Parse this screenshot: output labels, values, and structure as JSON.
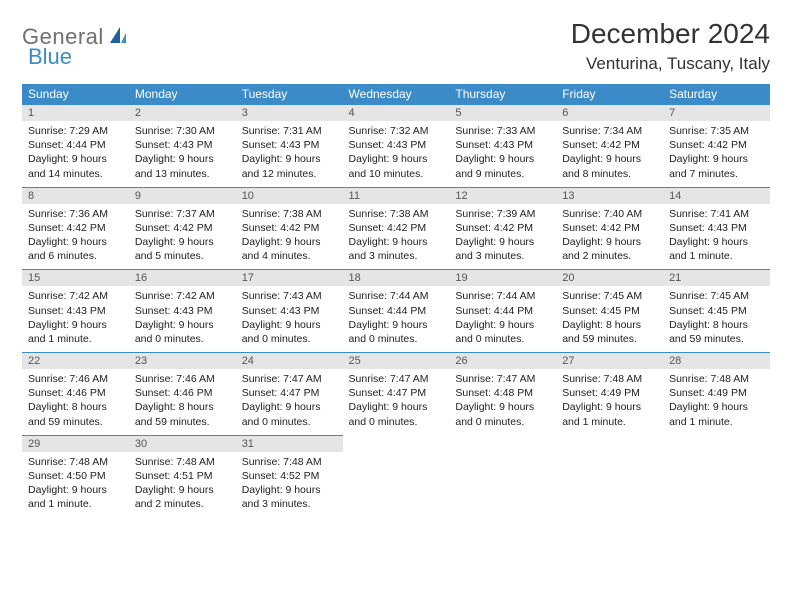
{
  "brand": {
    "part1": "General",
    "part2": "Blue",
    "color_gray": "#707070",
    "color_blue": "#3b8bc9"
  },
  "title": {
    "month": "December 2024",
    "location": "Venturina, Tuscany, Italy"
  },
  "colors": {
    "header_bg": "#3b8bc9",
    "header_fg": "#ffffff",
    "daynum_bg": "#e5e5e5",
    "daynum_fg": "#555555",
    "cell_border": "#3b8bc9",
    "text": "#222222",
    "page_bg": "#ffffff"
  },
  "day_labels": [
    "Sunday",
    "Monday",
    "Tuesday",
    "Wednesday",
    "Thursday",
    "Friday",
    "Saturday"
  ],
  "weeks": [
    [
      {
        "n": "1",
        "sr": "7:29 AM",
        "ss": "4:44 PM",
        "dl": "9 hours and 14 minutes."
      },
      {
        "n": "2",
        "sr": "7:30 AM",
        "ss": "4:43 PM",
        "dl": "9 hours and 13 minutes."
      },
      {
        "n": "3",
        "sr": "7:31 AM",
        "ss": "4:43 PM",
        "dl": "9 hours and 12 minutes."
      },
      {
        "n": "4",
        "sr": "7:32 AM",
        "ss": "4:43 PM",
        "dl": "9 hours and 10 minutes."
      },
      {
        "n": "5",
        "sr": "7:33 AM",
        "ss": "4:43 PM",
        "dl": "9 hours and 9 minutes."
      },
      {
        "n": "6",
        "sr": "7:34 AM",
        "ss": "4:42 PM",
        "dl": "9 hours and 8 minutes."
      },
      {
        "n": "7",
        "sr": "7:35 AM",
        "ss": "4:42 PM",
        "dl": "9 hours and 7 minutes."
      }
    ],
    [
      {
        "n": "8",
        "sr": "7:36 AM",
        "ss": "4:42 PM",
        "dl": "9 hours and 6 minutes."
      },
      {
        "n": "9",
        "sr": "7:37 AM",
        "ss": "4:42 PM",
        "dl": "9 hours and 5 minutes."
      },
      {
        "n": "10",
        "sr": "7:38 AM",
        "ss": "4:42 PM",
        "dl": "9 hours and 4 minutes."
      },
      {
        "n": "11",
        "sr": "7:38 AM",
        "ss": "4:42 PM",
        "dl": "9 hours and 3 minutes."
      },
      {
        "n": "12",
        "sr": "7:39 AM",
        "ss": "4:42 PM",
        "dl": "9 hours and 3 minutes."
      },
      {
        "n": "13",
        "sr": "7:40 AM",
        "ss": "4:42 PM",
        "dl": "9 hours and 2 minutes."
      },
      {
        "n": "14",
        "sr": "7:41 AM",
        "ss": "4:43 PM",
        "dl": "9 hours and 1 minute."
      }
    ],
    [
      {
        "n": "15",
        "sr": "7:42 AM",
        "ss": "4:43 PM",
        "dl": "9 hours and 1 minute."
      },
      {
        "n": "16",
        "sr": "7:42 AM",
        "ss": "4:43 PM",
        "dl": "9 hours and 0 minutes."
      },
      {
        "n": "17",
        "sr": "7:43 AM",
        "ss": "4:43 PM",
        "dl": "9 hours and 0 minutes."
      },
      {
        "n": "18",
        "sr": "7:44 AM",
        "ss": "4:44 PM",
        "dl": "9 hours and 0 minutes."
      },
      {
        "n": "19",
        "sr": "7:44 AM",
        "ss": "4:44 PM",
        "dl": "9 hours and 0 minutes."
      },
      {
        "n": "20",
        "sr": "7:45 AM",
        "ss": "4:45 PM",
        "dl": "8 hours and 59 minutes."
      },
      {
        "n": "21",
        "sr": "7:45 AM",
        "ss": "4:45 PM",
        "dl": "8 hours and 59 minutes."
      }
    ],
    [
      {
        "n": "22",
        "sr": "7:46 AM",
        "ss": "4:46 PM",
        "dl": "8 hours and 59 minutes."
      },
      {
        "n": "23",
        "sr": "7:46 AM",
        "ss": "4:46 PM",
        "dl": "8 hours and 59 minutes."
      },
      {
        "n": "24",
        "sr": "7:47 AM",
        "ss": "4:47 PM",
        "dl": "9 hours and 0 minutes."
      },
      {
        "n": "25",
        "sr": "7:47 AM",
        "ss": "4:47 PM",
        "dl": "9 hours and 0 minutes."
      },
      {
        "n": "26",
        "sr": "7:47 AM",
        "ss": "4:48 PM",
        "dl": "9 hours and 0 minutes."
      },
      {
        "n": "27",
        "sr": "7:48 AM",
        "ss": "4:49 PM",
        "dl": "9 hours and 1 minute."
      },
      {
        "n": "28",
        "sr": "7:48 AM",
        "ss": "4:49 PM",
        "dl": "9 hours and 1 minute."
      }
    ],
    [
      {
        "n": "29",
        "sr": "7:48 AM",
        "ss": "4:50 PM",
        "dl": "9 hours and 1 minute."
      },
      {
        "n": "30",
        "sr": "7:48 AM",
        "ss": "4:51 PM",
        "dl": "9 hours and 2 minutes."
      },
      {
        "n": "31",
        "sr": "7:48 AM",
        "ss": "4:52 PM",
        "dl": "9 hours and 3 minutes."
      },
      null,
      null,
      null,
      null
    ]
  ]
}
